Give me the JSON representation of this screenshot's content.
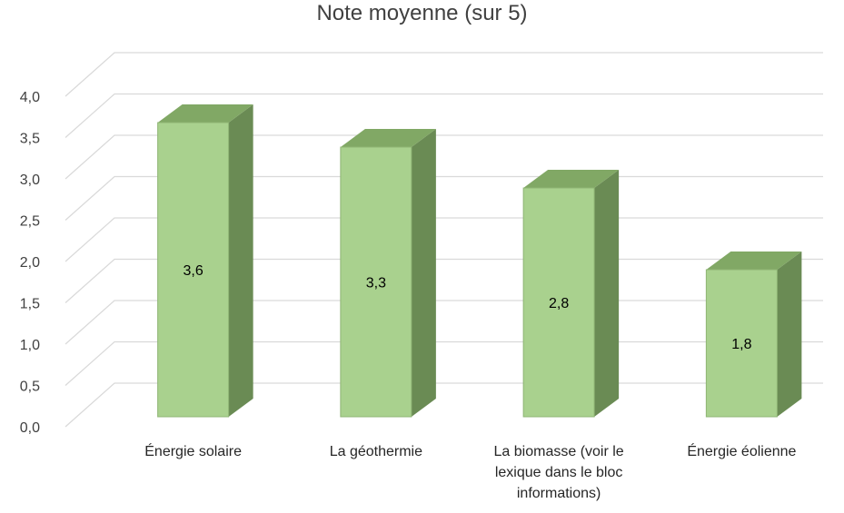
{
  "chart_data": {
    "type": "bar",
    "title": "Note moyenne (sur 5)",
    "categories": [
      "Énergie solaire",
      "La géothermie",
      "La biomasse (voir le lexique dans le bloc informations)",
      "Énergie éolienne"
    ],
    "values": [
      3.6,
      3.3,
      2.8,
      1.8
    ],
    "data_labels": [
      "3,6",
      "3,3",
      "2,8",
      "1,8"
    ],
    "ylim": [
      0,
      4.0
    ],
    "yticks": [
      0.0,
      0.5,
      1.0,
      1.5,
      2.0,
      2.5,
      3.0,
      3.5,
      4.0
    ],
    "ytick_labels": [
      "0,0",
      "0,5",
      "1,0",
      "1,5",
      "2,0",
      "2,5",
      "3,0",
      "3,5",
      "4,0"
    ],
    "grid": true,
    "legend": "none",
    "colors": {
      "bar_front": "#a9d18e",
      "bar_top": "#81a865",
      "bar_side": "#6a8b54",
      "bar_edge": "#8fb574",
      "grid": "#d9d9d9",
      "text": "#404040"
    }
  }
}
